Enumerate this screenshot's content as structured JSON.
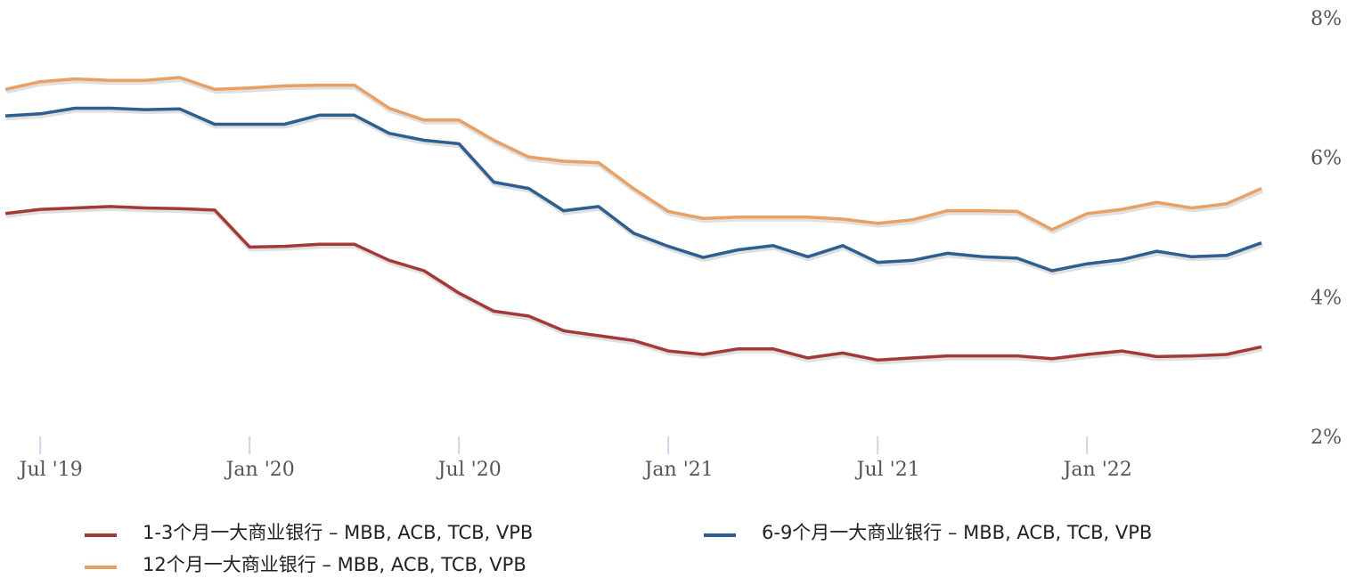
{
  "chart_data": {
    "type": "line",
    "x": [
      "2019-06",
      "2019-07",
      "2019-08",
      "2019-09",
      "2019-10",
      "2019-11",
      "2019-12",
      "2020-01",
      "2020-02",
      "2020-03",
      "2020-04",
      "2020-05",
      "2020-06",
      "2020-07",
      "2020-08",
      "2020-09",
      "2020-10",
      "2020-11",
      "2020-12",
      "2021-01",
      "2021-02",
      "2021-03",
      "2021-04",
      "2021-05",
      "2021-06",
      "2021-07",
      "2021-08",
      "2021-09",
      "2021-10",
      "2021-11",
      "2021-12",
      "2022-01",
      "2022-02",
      "2022-03",
      "2022-04",
      "2022-05",
      "2022-06"
    ],
    "series": [
      {
        "name": "1-3个月一大商业银行 – MBB, ACB, TCB, VPB",
        "color": "#a33a3a",
        "values": [
          5.22,
          5.28,
          5.3,
          5.32,
          5.3,
          5.29,
          5.27,
          4.74,
          4.75,
          4.78,
          4.78,
          4.55,
          4.4,
          4.08,
          3.82,
          3.75,
          3.54,
          3.47,
          3.4,
          3.25,
          3.2,
          3.28,
          3.28,
          3.15,
          3.22,
          3.12,
          3.15,
          3.18,
          3.18,
          3.18,
          3.14,
          3.2,
          3.25,
          3.17,
          3.18,
          3.2,
          3.31
        ]
      },
      {
        "name": "6-9个月一大商业银行 – MBB, ACB, TCB, VPB",
        "color": "#2e5f8f",
        "values": [
          6.62,
          6.65,
          6.73,
          6.73,
          6.71,
          6.72,
          6.5,
          6.5,
          6.5,
          6.63,
          6.63,
          6.37,
          6.27,
          6.22,
          5.67,
          5.58,
          5.26,
          5.32,
          4.94,
          4.75,
          4.59,
          4.7,
          4.76,
          4.6,
          4.76,
          4.52,
          4.55,
          4.65,
          4.6,
          4.58,
          4.4,
          4.5,
          4.56,
          4.68,
          4.6,
          4.62,
          4.8
        ]
      },
      {
        "name": "12个月一大商业银行 – MBB, ACB, TCB, VPB",
        "color": "#e8a065",
        "values": [
          7.0,
          7.11,
          7.15,
          7.13,
          7.13,
          7.17,
          7.0,
          7.02,
          7.05,
          7.06,
          7.06,
          6.73,
          6.56,
          6.56,
          6.27,
          6.03,
          5.97,
          5.95,
          5.58,
          5.25,
          5.15,
          5.17,
          5.17,
          5.17,
          5.14,
          5.08,
          5.13,
          5.26,
          5.26,
          5.25,
          4.99,
          5.22,
          5.28,
          5.38,
          5.3,
          5.36,
          5.58
        ]
      }
    ],
    "xlim": [
      "2019-06",
      "2022-06"
    ],
    "xticks": [
      {
        "value": "2019-07",
        "label": "Jul '19"
      },
      {
        "value": "2020-01",
        "label": "Jan '20"
      },
      {
        "value": "2020-07",
        "label": "Jul '20"
      },
      {
        "value": "2021-01",
        "label": "Jan '21"
      },
      {
        "value": "2021-07",
        "label": "Jul '21"
      },
      {
        "value": "2022-01",
        "label": "Jan '22"
      }
    ],
    "ylim": [
      2,
      8
    ],
    "yticks": [
      {
        "value": 2,
        "label": "2%"
      },
      {
        "value": 4,
        "label": "4%"
      },
      {
        "value": 6,
        "label": "6%"
      },
      {
        "value": 8,
        "label": "8%"
      }
    ]
  }
}
